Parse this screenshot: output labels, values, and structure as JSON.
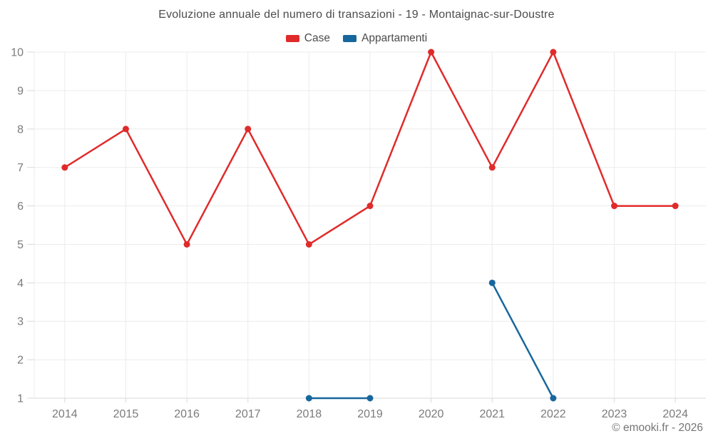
{
  "chart": {
    "title": "Evoluzione annuale del numero di transazioni - 19 - Montaignac-sur-Doustre"
  },
  "chart_data": {
    "type": "line",
    "title": "Evoluzione annuale del numero di transazioni - 19 - Montaignac-sur-Doustre",
    "x": [
      "2014",
      "2015",
      "2016",
      "2017",
      "2018",
      "2019",
      "2020",
      "2021",
      "2022",
      "2023",
      "2024"
    ],
    "series": [
      {
        "name": "Case",
        "color": "#e02b2b",
        "values": [
          7,
          8,
          5,
          8,
          5,
          6,
          10,
          7,
          10,
          6,
          6
        ]
      },
      {
        "name": "Appartamenti",
        "color": "#17679d",
        "values": [
          null,
          null,
          null,
          null,
          1,
          1,
          null,
          4,
          1,
          null,
          null
        ]
      }
    ],
    "xlabel": "",
    "ylabel": "",
    "ylim": [
      1,
      10
    ],
    "yticks": [
      1,
      2,
      3,
      4,
      5,
      6,
      7,
      8,
      9,
      10
    ],
    "grid": true,
    "legend_position": "top",
    "marker": "circle"
  },
  "footer": {
    "copyright": "© emooki.fr - 2026"
  }
}
